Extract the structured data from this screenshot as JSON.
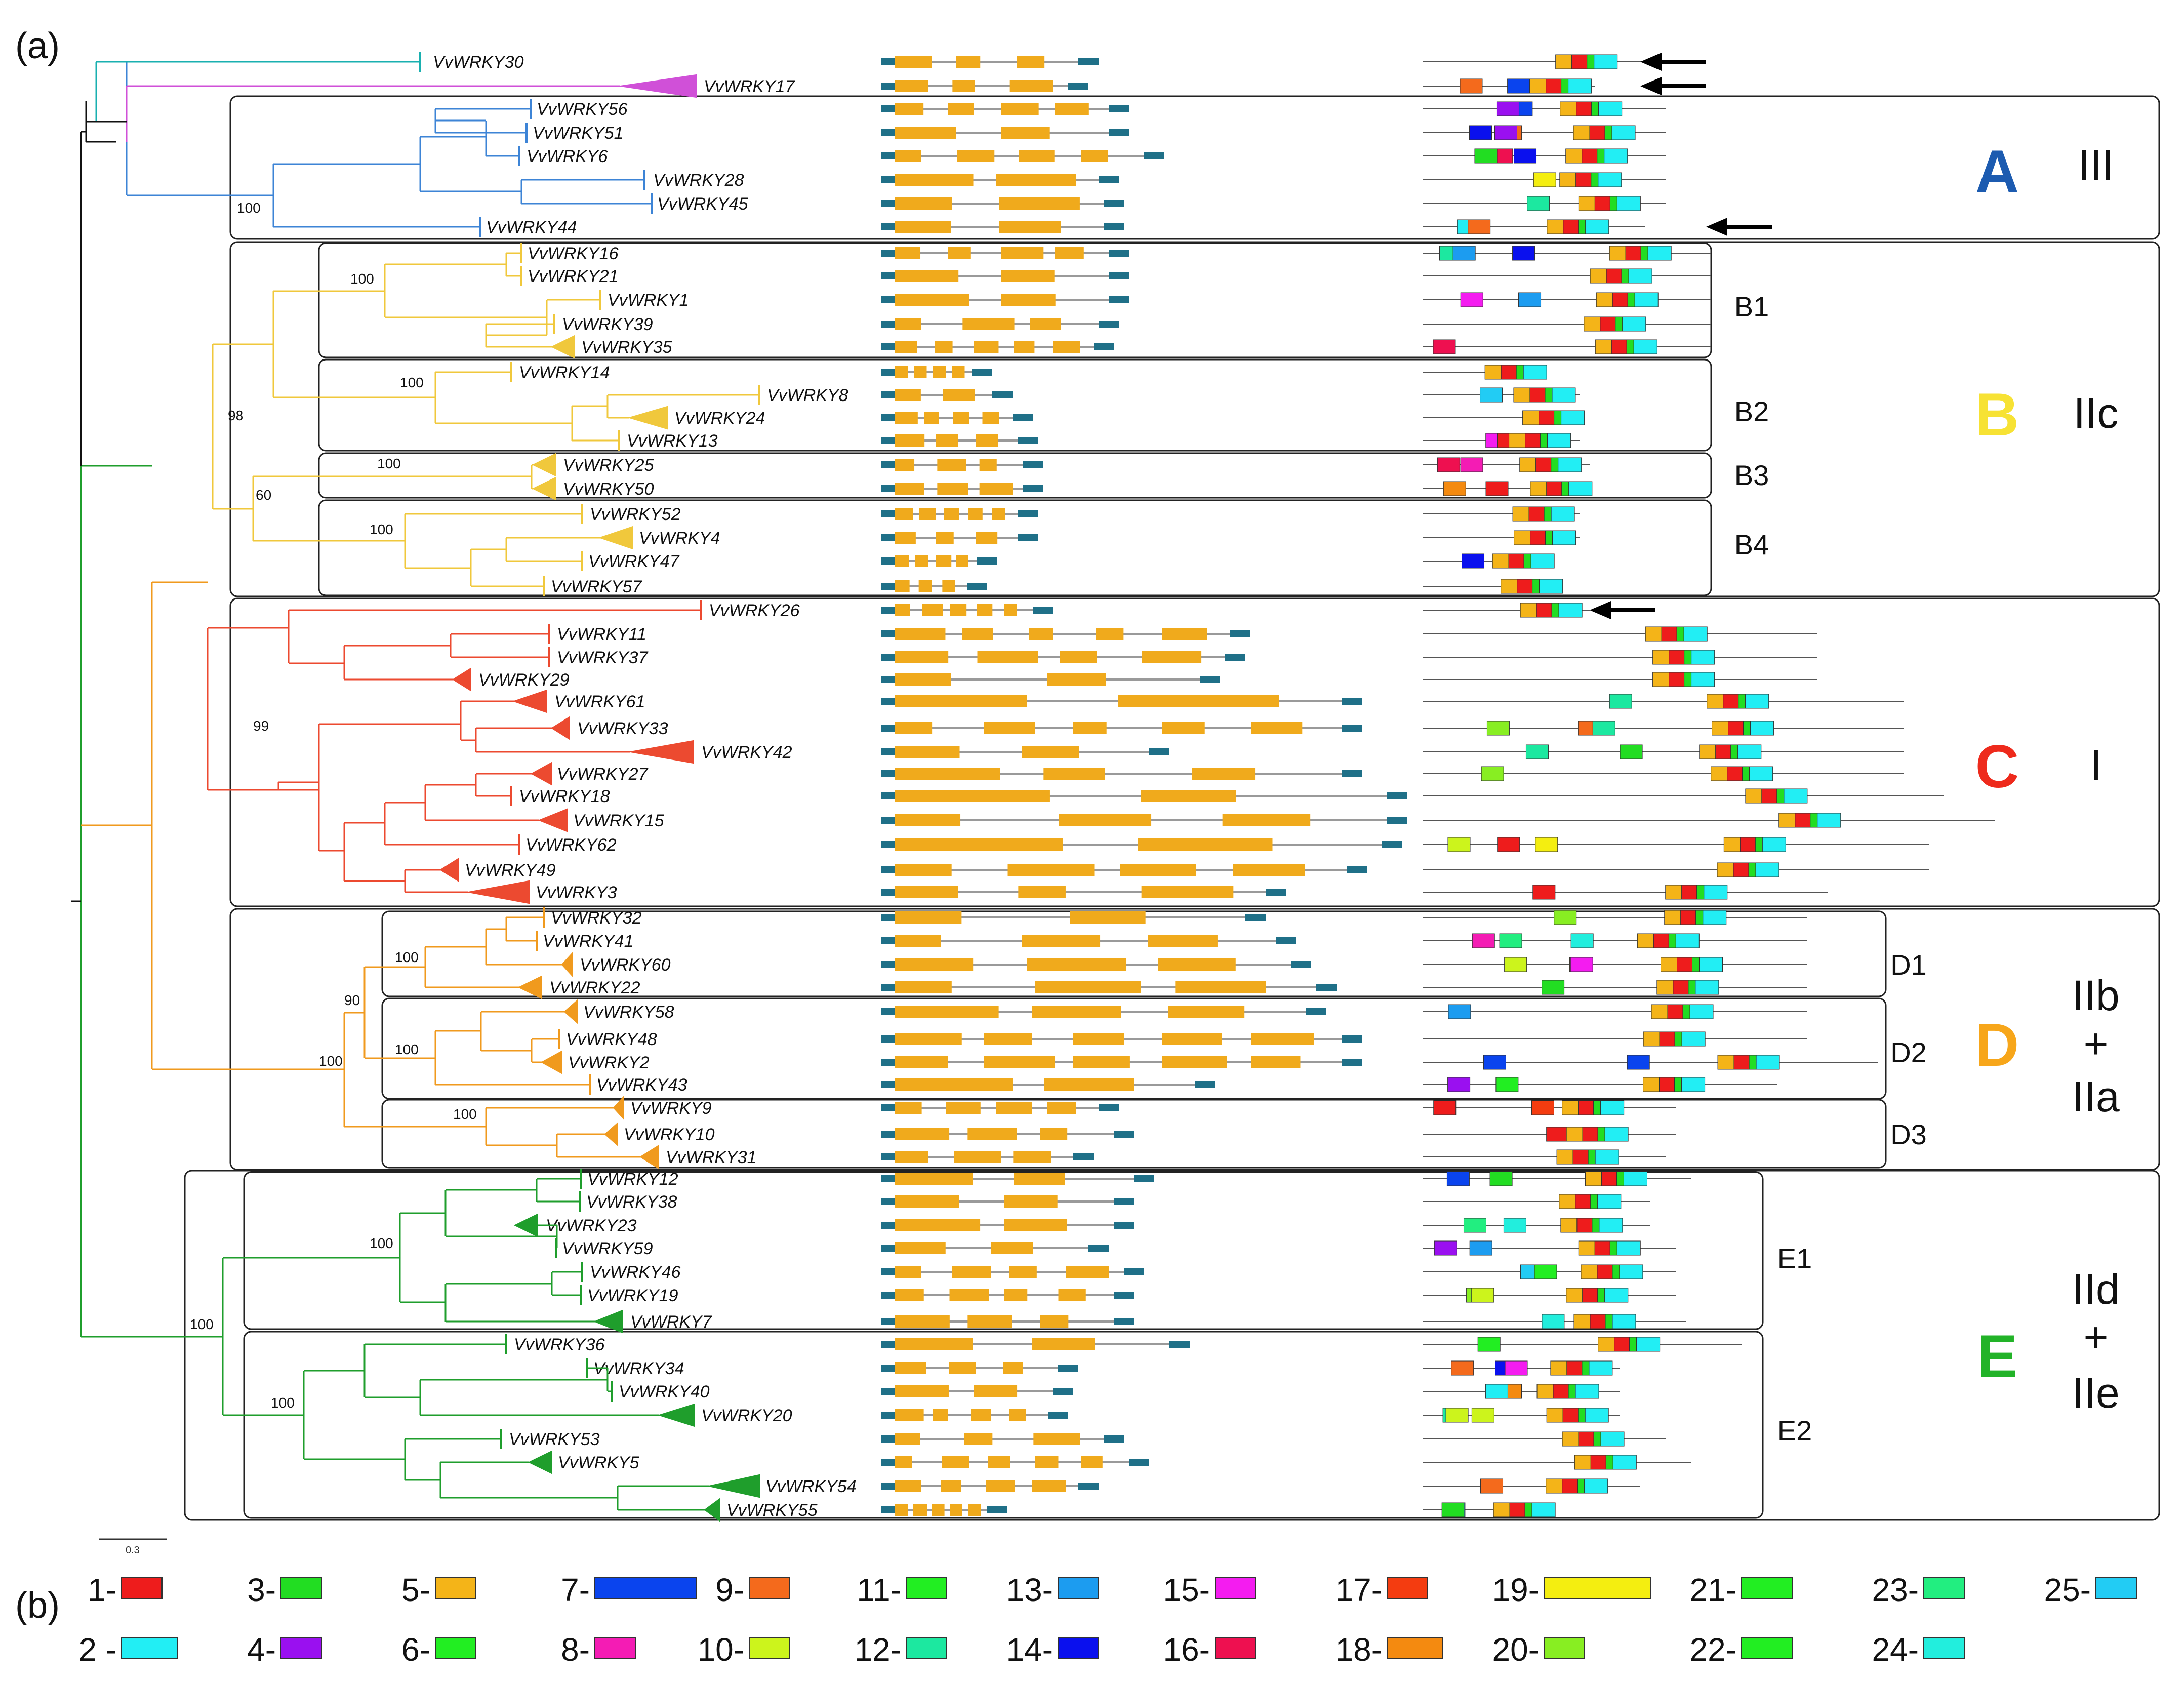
{
  "panels": {
    "a": "(a)",
    "b": "(b)"
  },
  "scale_label": "0.3",
  "colors": {
    "A": "#1c5bb0",
    "B": "#f7e234",
    "C": "#ee2a1c",
    "D": "#f7a61a",
    "E": "#22b328",
    "exon": "#f0aa1c",
    "utr": "#1f7088",
    "intron": "#9a9a9a",
    "A_branch": "#3d84d6",
    "B_branch": "#f0c83c",
    "C_branch": "#ec4a30",
    "D_branch": "#f09a1e",
    "E_branch": "#1f9e2c",
    "W30": "#1ab0b0",
    "W17": "#d050d8"
  },
  "groups": [
    {
      "id": "A",
      "letter": "A",
      "class": "III",
      "subgroups": []
    },
    {
      "id": "B",
      "letter": "B",
      "class": "IIc",
      "subgroups": [
        "B1",
        "B2",
        "B3",
        "B4"
      ]
    },
    {
      "id": "C",
      "letter": "C",
      "class": "I",
      "subgroups": []
    },
    {
      "id": "D",
      "letter": "D",
      "class": [
        "IIb",
        "+",
        "IIa"
      ],
      "subgroups": [
        "D1",
        "D2",
        "D3"
      ]
    },
    {
      "id": "E",
      "letter": "E",
      "class": [
        "IId",
        "+",
        "IIe"
      ],
      "subgroups": [
        "E1",
        "E2"
      ]
    }
  ],
  "genes": [
    "VvWRKY30",
    "VvWRKY17",
    "VvWRKY56",
    "VvWRKY51",
    "VvWRKY6",
    "VvWRKY28",
    "VvWRKY45",
    "VvWRKY44",
    "VvWRKY16",
    "VvWRKY21",
    "VvWRKY1",
    "VvWRKY39",
    "VvWRKY35",
    "VvWRKY14",
    "VvWRKY8",
    "VvWRKY24",
    "VvWRKY13",
    "VvWRKY25",
    "VvWRKY50",
    "VvWRKY52",
    "VvWRKY4",
    "VvWRKY47",
    "VvWRKY57",
    "VvWRKY26",
    "VvWRKY11",
    "VvWRKY37",
    "VvWRKY29",
    "VvWRKY61",
    "VvWRKY33",
    "VvWRKY42",
    "VvWRKY27",
    "VvWRKY18",
    "VvWRKY15",
    "VvWRKY62",
    "VvWRKY49",
    "VvWRKY3",
    "VvWRKY32",
    "VvWRKY41",
    "VvWRKY60",
    "VvWRKY22",
    "VvWRKY58",
    "VvWRKY48",
    "VvWRKY2",
    "VvWRKY43",
    "VvWRKY9",
    "VvWRKY10",
    "VvWRKY31",
    "VvWRKY12",
    "VvWRKY38",
    "VvWRKY23",
    "VvWRKY59",
    "VvWRKY46",
    "VvWRKY19",
    "VvWRKY7",
    "VvWRKY36",
    "VvWRKY34",
    "VvWRKY40",
    "VvWRKY20",
    "VvWRKY53",
    "VvWRKY5",
    "VvWRKY54",
    "VvWRKY55"
  ],
  "bootstrap": [
    "100",
    "100",
    "100",
    "98",
    "60",
    "100",
    "99",
    "90",
    "100",
    "100",
    "100",
    "100",
    "100",
    "100"
  ],
  "motif_legend": [
    {
      "label": "1-",
      "color": "#ee1c1c"
    },
    {
      "label": "2 -",
      "color": "#22eef4"
    },
    {
      "label": "3-",
      "color": "#22dd22"
    },
    {
      "label": "4-",
      "color": "#9a10f0"
    },
    {
      "label": "5-",
      "color": "#f4b418"
    },
    {
      "label": "6-",
      "color": "#22ee22"
    },
    {
      "label": "7-",
      "color": "#0a44ee"
    },
    {
      "label": "8-",
      "color": "#f41cb4"
    },
    {
      "label": "9-",
      "color": "#f46a1c"
    },
    {
      "label": "10-",
      "color": "#ccf41c"
    },
    {
      "label": "11-",
      "color": "#22ee22"
    },
    {
      "label": "12-",
      "color": "#1ce8a0"
    },
    {
      "label": "13-",
      "color": "#1c9cf0"
    },
    {
      "label": "14-",
      "color": "#0a10ee"
    },
    {
      "label": "15-",
      "color": "#f41cf0"
    },
    {
      "label": "16-",
      "color": "#ee1050"
    },
    {
      "label": "17-",
      "color": "#f43c10"
    },
    {
      "label": "18-",
      "color": "#f48a10"
    },
    {
      "label": "19-",
      "color": "#f4ee10"
    },
    {
      "label": "20-",
      "color": "#88ee22"
    },
    {
      "label": "21-",
      "color": "#22ee22"
    },
    {
      "label": "22-",
      "color": "#22ee22"
    },
    {
      "label": "23-",
      "color": "#22ee80"
    },
    {
      "label": "24-",
      "color": "#22eedd"
    },
    {
      "label": "25-",
      "color": "#22ccf4"
    }
  ]
}
